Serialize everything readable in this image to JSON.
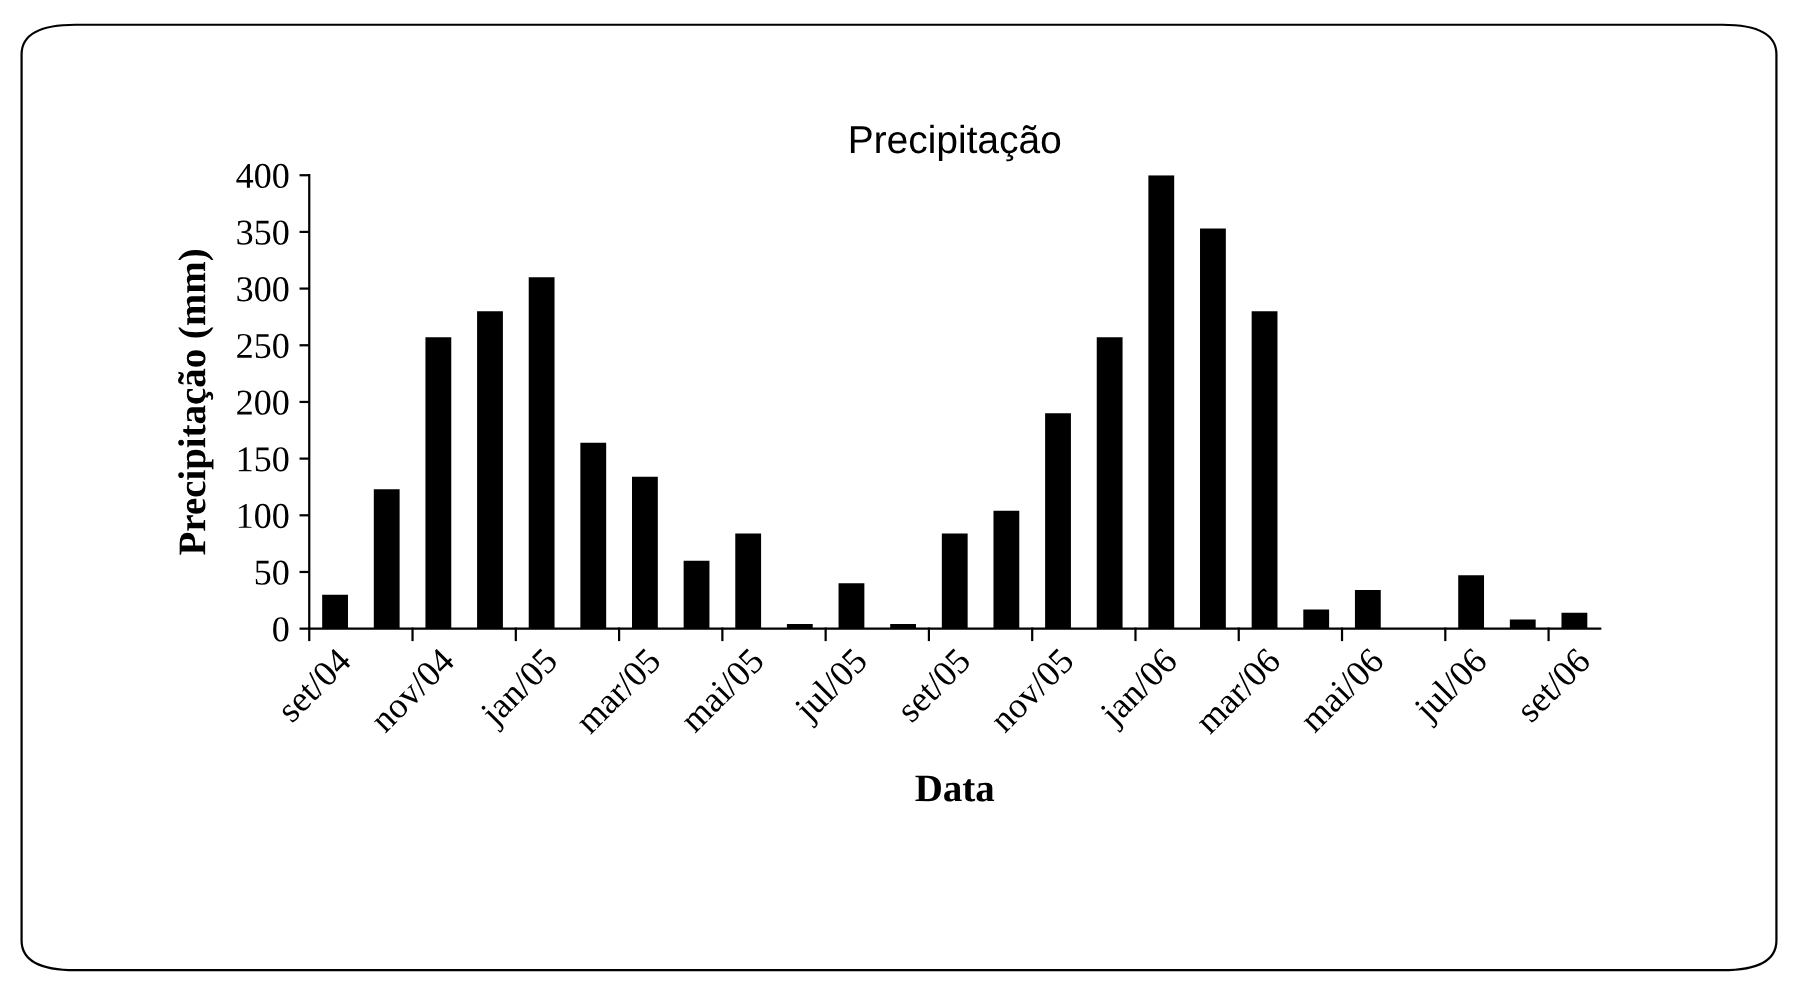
{
  "chart_data": {
    "type": "bar",
    "title": "Precipitação",
    "xlabel": "Data",
    "ylabel": "Precipitação (mm)",
    "categories": [
      "set/04",
      null,
      "nov/04",
      null,
      "jan/05",
      null,
      "mar/05",
      null,
      "mai/05",
      null,
      "jul/05",
      null,
      "set/05",
      null,
      "nov/05",
      null,
      "jan/06",
      null,
      "mar/06",
      null,
      "mai/06",
      null,
      "jul/06",
      null,
      "set/06"
    ],
    "values": [
      30,
      123,
      257,
      280,
      310,
      164,
      134,
      60,
      84,
      4,
      40,
      4,
      84,
      104,
      190,
      257,
      400,
      353,
      280,
      17,
      34,
      0,
      47,
      8,
      14
    ],
    "color": "#000000",
    "ylim": [
      0,
      400
    ],
    "yticks": [
      0,
      50,
      100,
      150,
      200,
      250,
      300,
      350,
      400
    ],
    "grid": false,
    "legend": false
  }
}
